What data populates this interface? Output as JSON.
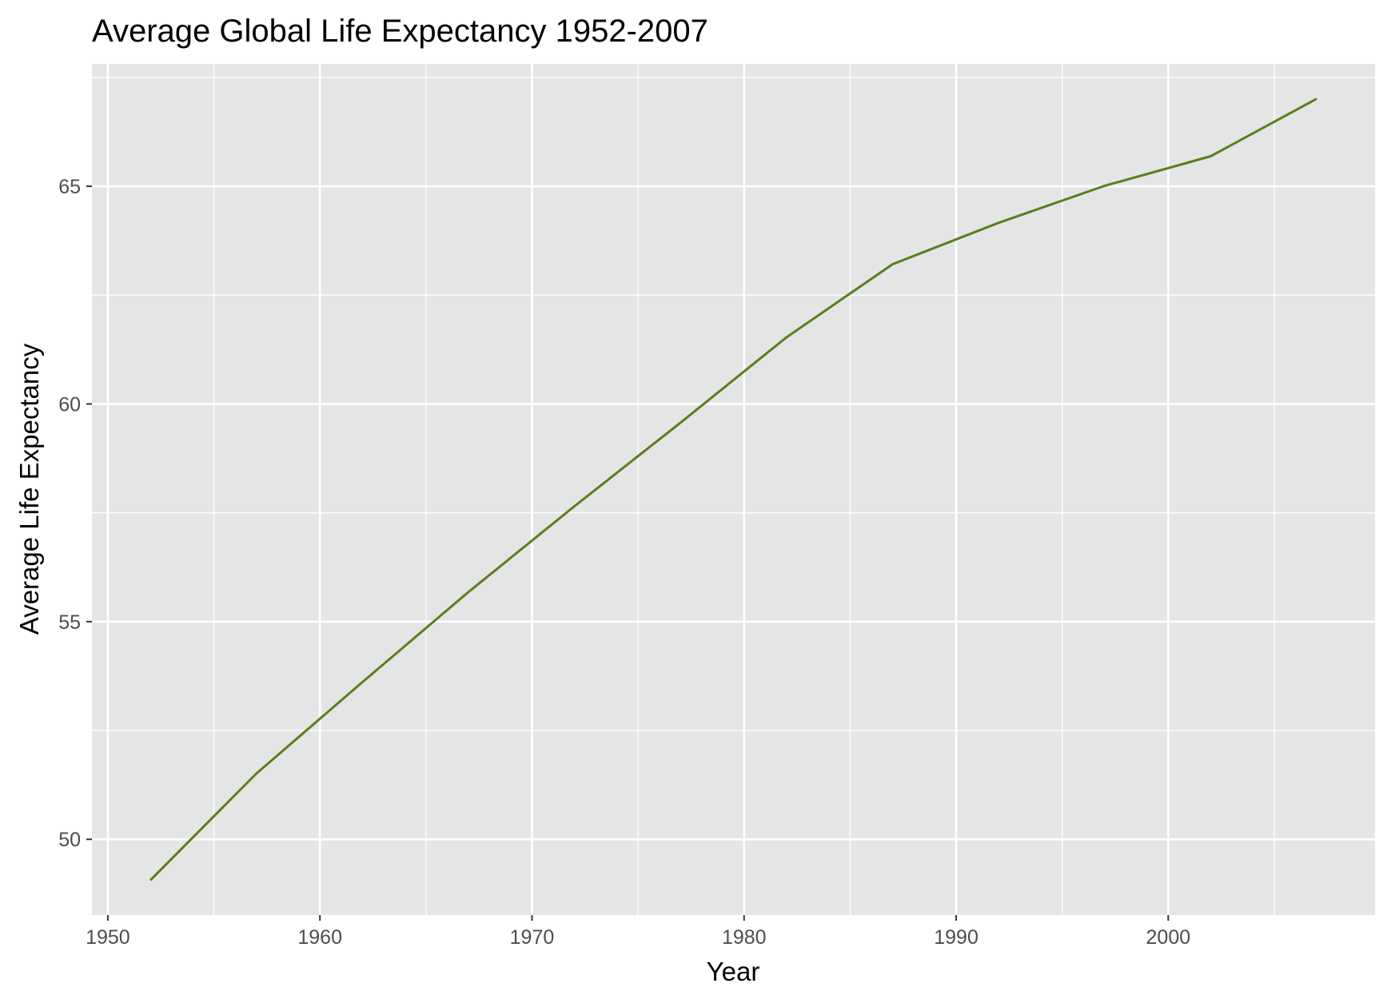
{
  "chart_data": {
    "type": "line",
    "title": "Average Global Life Expectancy 1952-2007",
    "xlabel": "Year",
    "ylabel": "Average Life Expectancy",
    "x": [
      1952,
      1957,
      1962,
      1967,
      1972,
      1977,
      1982,
      1987,
      1992,
      1997,
      2002,
      2007
    ],
    "series": [
      {
        "values": [
          49.06,
          51.51,
          53.61,
          55.68,
          57.65,
          59.57,
          61.53,
          63.21,
          64.16,
          65.01,
          65.69,
          67.01
        ]
      }
    ],
    "xlim": [
      1949.25,
      2009.75
    ],
    "ylim": [
      48.26,
      67.81
    ],
    "x_ticks": [
      1950,
      1960,
      1970,
      1980,
      1990,
      2000
    ],
    "x_minor_ticks": [
      1955,
      1965,
      1975,
      1985,
      1995,
      2005
    ],
    "y_ticks": [
      50,
      55,
      60,
      65
    ],
    "y_minor_ticks": [
      52.5,
      57.5,
      62.5,
      67.5
    ],
    "grid": true,
    "colors": {
      "panel_background": "#e5e5e5",
      "grid": "#ffffff",
      "line": "#5a7f1a",
      "tick_text": "#4d4d4d",
      "tick_mark": "#333333"
    }
  }
}
